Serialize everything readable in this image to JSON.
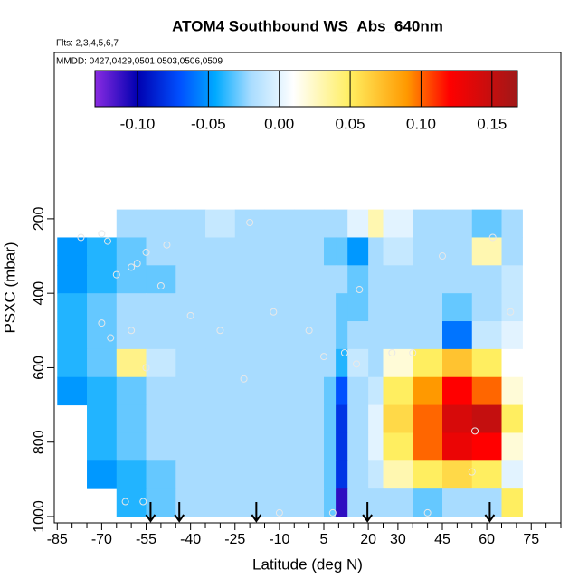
{
  "chart_data": {
    "type": "heatmap",
    "title": "ATOM4 Southbound WS_Abs_640nm",
    "subtitle": "Flts: 2,3,4,5,6,7",
    "annotation": "MMDD: 0427,0429,0501,0503,0506,0509",
    "x_label": "Latitude (deg N)",
    "y_label": "PSXC (mbar)",
    "xlim": [
      -86,
      85
    ],
    "ylim": [
      1017,
      -247
    ],
    "xticks": [
      -85,
      -70,
      -55,
      -40,
      -25,
      -10,
      5,
      20,
      30,
      45,
      60,
      75
    ],
    "xminorticks": [
      -80,
      -75,
      -65,
      -60,
      -50,
      -45,
      -35,
      -30,
      -20,
      -15,
      -5,
      0,
      10,
      15,
      25,
      35,
      40,
      50,
      55,
      65,
      70,
      80,
      85
    ],
    "yticks": [
      200,
      400,
      600,
      800,
      1000
    ],
    "x_edges": [
      -85,
      -75,
      -65,
      -55,
      -45,
      -35,
      -25,
      -15,
      -5,
      5,
      9,
      13,
      20,
      25,
      35,
      45,
      55,
      65,
      72
    ],
    "p_edges": [
      175,
      250,
      325,
      400,
      475,
      550,
      625,
      700,
      775,
      850,
      925,
      1000
    ],
    "z": [
      [
        null,
        null,
        -0.02,
        -0.02,
        -0.02,
        -0.01,
        -0.02,
        -0.02,
        -0.02,
        -0.02,
        -0.02,
        0.0,
        0.03,
        0.0,
        -0.02,
        -0.02,
        -0.03,
        -0.02
      ],
      [
        -0.05,
        -0.04,
        -0.03,
        -0.02,
        -0.02,
        -0.02,
        -0.02,
        -0.02,
        -0.02,
        -0.03,
        -0.03,
        -0.05,
        -0.02,
        -0.01,
        -0.02,
        -0.02,
        0.03,
        -0.02
      ],
      [
        -0.05,
        -0.04,
        -0.03,
        -0.03,
        -0.02,
        -0.02,
        -0.02,
        -0.02,
        -0.02,
        -0.02,
        -0.02,
        -0.03,
        -0.02,
        -0.02,
        -0.02,
        -0.02,
        -0.02,
        -0.01
      ],
      [
        -0.04,
        -0.03,
        -0.02,
        -0.02,
        -0.02,
        -0.02,
        -0.02,
        -0.02,
        -0.02,
        -0.02,
        -0.03,
        -0.03,
        -0.02,
        -0.02,
        -0.02,
        -0.03,
        -0.02,
        -0.01
      ],
      [
        -0.04,
        -0.03,
        -0.02,
        -0.02,
        -0.02,
        -0.02,
        -0.02,
        -0.02,
        -0.02,
        -0.02,
        -0.03,
        -0.02,
        -0.02,
        -0.02,
        -0.02,
        -0.06,
        -0.01,
        0.0
      ],
      [
        -0.04,
        -0.03,
        0.04,
        -0.01,
        -0.02,
        -0.02,
        -0.02,
        -0.02,
        -0.02,
        -0.02,
        -0.04,
        -0.01,
        -0.02,
        0.02,
        0.05,
        0.07,
        0.05,
        0.01
      ],
      [
        -0.05,
        -0.04,
        -0.03,
        -0.02,
        -0.02,
        -0.02,
        -0.02,
        -0.02,
        -0.02,
        -0.03,
        -0.07,
        -0.02,
        -0.01,
        0.05,
        0.09,
        0.12,
        0.1,
        0.02
      ],
      [
        null,
        -0.04,
        -0.03,
        -0.02,
        -0.02,
        -0.02,
        -0.02,
        -0.02,
        -0.02,
        -0.03,
        -0.08,
        -0.02,
        0.0,
        0.06,
        0.1,
        0.14,
        0.15,
        0.05
      ],
      [
        null,
        -0.04,
        -0.03,
        -0.02,
        -0.02,
        -0.02,
        -0.02,
        -0.02,
        -0.02,
        -0.03,
        -0.08,
        -0.02,
        0.0,
        0.05,
        0.1,
        0.13,
        0.12,
        0.02
      ],
      [
        null,
        -0.05,
        -0.04,
        -0.03,
        -0.02,
        -0.02,
        -0.02,
        -0.02,
        -0.02,
        -0.03,
        -0.08,
        -0.02,
        -0.01,
        0.03,
        0.05,
        0.06,
        0.05,
        0.0
      ],
      [
        null,
        null,
        -0.04,
        -0.03,
        -0.02,
        -0.02,
        -0.02,
        -0.02,
        -0.02,
        -0.03,
        -0.11,
        -0.02,
        -0.02,
        -0.02,
        -0.03,
        -0.02,
        -0.02,
        0.05
      ]
    ],
    "colorscale": [
      [
        -0.13,
        "#8a2be2"
      ],
      [
        -0.1,
        "#0000b0"
      ],
      [
        -0.07,
        "#0050ff"
      ],
      [
        -0.045,
        "#00aaff"
      ],
      [
        -0.02,
        "#a8dcff"
      ],
      [
        0.01,
        "#ffffff"
      ],
      [
        0.05,
        "#ffee60"
      ],
      [
        0.09,
        "#ff9900"
      ],
      [
        0.12,
        "#ff0000"
      ],
      [
        0.168,
        "#a01818"
      ]
    ],
    "colorbar_lim": [
      -0.13,
      0.168
    ],
    "colorbar_ticks": [
      {
        "value": -0.1,
        "label": "-0.10"
      },
      {
        "value": -0.05,
        "label": "-0.05"
      },
      {
        "value": 0,
        "label": "0.00"
      },
      {
        "value": 0.05,
        "label": "0.05"
      },
      {
        "value": 0.1,
        "label": "0.10"
      },
      {
        "value": 0.15,
        "label": "0.15"
      }
    ],
    "points": {
      "x": [
        -77,
        -70,
        -68,
        -55,
        -48,
        -58,
        -60,
        -65,
        -70,
        -67,
        -60,
        -55,
        -50,
        -40,
        -30,
        -22,
        -12,
        0,
        5,
        16,
        17,
        28,
        35,
        45,
        56,
        55,
        68,
        -62,
        -56,
        -10,
        8,
        40,
        62,
        -20,
        12
      ],
      "y": [
        250,
        240,
        260,
        290,
        270,
        320,
        330,
        350,
        480,
        520,
        500,
        600,
        380,
        460,
        500,
        630,
        450,
        500,
        570,
        590,
        390,
        560,
        560,
        300,
        770,
        880,
        450,
        960,
        960,
        990,
        990,
        990,
        250,
        210,
        560
      ],
      "color": "#e8e8e8"
    },
    "arrows": [
      -53.5,
      -43.8,
      -17.8,
      19.7,
      61
    ]
  }
}
